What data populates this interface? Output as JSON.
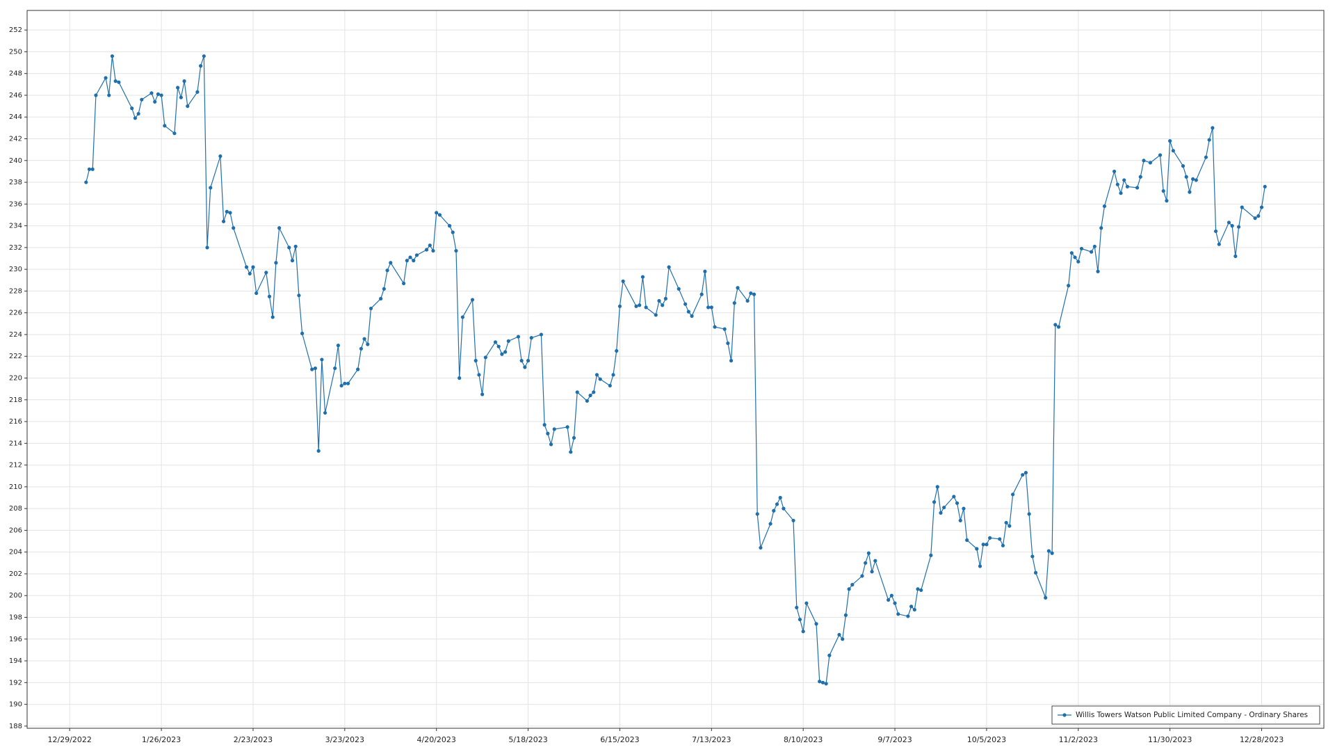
{
  "chart_data": {
    "type": "line",
    "x": [
      "1/3/2023",
      "1/4/2023",
      "1/5/2023",
      "1/6/2023",
      "1/9/2023",
      "1/10/2023",
      "1/11/2023",
      "1/12/2023",
      "1/13/2023",
      "1/17/2023",
      "1/18/2023",
      "1/19/2023",
      "1/20/2023",
      "1/23/2023",
      "1/24/2023",
      "1/25/2023",
      "1/26/2023",
      "1/27/2023",
      "1/30/2023",
      "1/31/2023",
      "2/1/2023",
      "2/2/2023",
      "2/3/2023",
      "2/6/2023",
      "2/7/2023",
      "2/8/2023",
      "2/9/2023",
      "2/10/2023",
      "2/13/2023",
      "2/14/2023",
      "2/15/2023",
      "2/16/2023",
      "2/17/2023",
      "2/21/2023",
      "2/22/2023",
      "2/23/2023",
      "2/24/2023",
      "2/27/2023",
      "2/28/2023",
      "3/1/2023",
      "3/2/2023",
      "3/3/2023",
      "3/6/2023",
      "3/7/2023",
      "3/8/2023",
      "3/9/2023",
      "3/10/2023",
      "3/13/2023",
      "3/14/2023",
      "3/15/2023",
      "3/16/2023",
      "3/17/2023",
      "3/20/2023",
      "3/21/2023",
      "3/22/2023",
      "3/23/2023",
      "3/24/2023",
      "3/27/2023",
      "3/28/2023",
      "3/29/2023",
      "3/30/2023",
      "3/31/2023",
      "4/3/2023",
      "4/4/2023",
      "4/5/2023",
      "4/6/2023",
      "4/10/2023",
      "4/11/2023",
      "4/12/2023",
      "4/13/2023",
      "4/14/2023",
      "4/17/2023",
      "4/18/2023",
      "4/19/2023",
      "4/20/2023",
      "4/21/2023",
      "4/24/2023",
      "4/25/2023",
      "4/26/2023",
      "4/27/2023",
      "4/28/2023",
      "5/1/2023",
      "5/2/2023",
      "5/3/2023",
      "5/4/2023",
      "5/5/2023",
      "5/8/2023",
      "5/9/2023",
      "5/10/2023",
      "5/11/2023",
      "5/12/2023",
      "5/15/2023",
      "5/16/2023",
      "5/17/2023",
      "5/18/2023",
      "5/19/2023",
      "5/22/2023",
      "5/23/2023",
      "5/24/2023",
      "5/25/2023",
      "5/26/2023",
      "5/30/2023",
      "5/31/2023",
      "6/1/2023",
      "6/2/2023",
      "6/5/2023",
      "6/6/2023",
      "6/7/2023",
      "6/8/2023",
      "6/9/2023",
      "6/12/2023",
      "6/13/2023",
      "6/14/2023",
      "6/15/2023",
      "6/16/2023",
      "6/20/2023",
      "6/21/2023",
      "6/22/2023",
      "6/23/2023",
      "6/26/2023",
      "6/27/2023",
      "6/28/2023",
      "6/29/2023",
      "6/30/2023",
      "7/3/2023",
      "7/5/2023",
      "7/6/2023",
      "7/7/2023",
      "7/10/2023",
      "7/11/2023",
      "7/12/2023",
      "7/13/2023",
      "7/14/2023",
      "7/17/2023",
      "7/18/2023",
      "7/19/2023",
      "7/20/2023",
      "7/21/2023",
      "7/24/2023",
      "7/25/2023",
      "7/26/2023",
      "7/27/2023",
      "7/28/2023",
      "7/31/2023",
      "8/1/2023",
      "8/2/2023",
      "8/3/2023",
      "8/4/2023",
      "8/7/2023",
      "8/8/2023",
      "8/9/2023",
      "8/10/2023",
      "8/11/2023",
      "8/14/2023",
      "8/15/2023",
      "8/16/2023",
      "8/17/2023",
      "8/18/2023",
      "8/21/2023",
      "8/22/2023",
      "8/23/2023",
      "8/24/2023",
      "8/25/2023",
      "8/28/2023",
      "8/29/2023",
      "8/30/2023",
      "8/31/2023",
      "9/1/2023",
      "9/5/2023",
      "9/6/2023",
      "9/7/2023",
      "9/8/2023",
      "9/11/2023",
      "9/12/2023",
      "9/13/2023",
      "9/14/2023",
      "9/15/2023",
      "9/18/2023",
      "9/19/2023",
      "9/20/2023",
      "9/21/2023",
      "9/22/2023",
      "9/25/2023",
      "9/26/2023",
      "9/27/2023",
      "9/28/2023",
      "9/29/2023",
      "10/2/2023",
      "10/3/2023",
      "10/4/2023",
      "10/5/2023",
      "10/6/2023",
      "10/9/2023",
      "10/10/2023",
      "10/11/2023",
      "10/12/2023",
      "10/13/2023",
      "10/16/2023",
      "10/17/2023",
      "10/18/2023",
      "10/19/2023",
      "10/20/2023",
      "10/23/2023",
      "10/24/2023",
      "10/25/2023",
      "10/26/2023",
      "10/27/2023",
      "10/30/2023",
      "10/31/2023",
      "11/1/2023",
      "11/2/2023",
      "11/3/2023",
      "11/6/2023",
      "11/7/2023",
      "11/8/2023",
      "11/9/2023",
      "11/10/2023",
      "11/13/2023",
      "11/14/2023",
      "11/15/2023",
      "11/16/2023",
      "11/17/2023",
      "11/20/2023",
      "11/21/2023",
      "11/22/2023",
      "11/24/2023",
      "11/27/2023",
      "11/28/2023",
      "11/29/2023",
      "11/30/2023",
      "12/1/2023",
      "12/4/2023",
      "12/5/2023",
      "12/6/2023",
      "12/7/2023",
      "12/8/2023",
      "12/11/2023",
      "12/12/2023",
      "12/13/2023",
      "12/14/2023",
      "12/15/2023",
      "12/18/2023",
      "12/19/2023",
      "12/20/2023",
      "12/21/2023",
      "12/22/2023",
      "12/26/2023",
      "12/27/2023",
      "12/28/2023",
      "12/29/2023"
    ],
    "series": [
      {
        "name": "Willis Towers Watson Public Limited Company - Ordinary Shares",
        "color": "#1f6fad",
        "values": [
          238.0,
          239.2,
          239.2,
          246.0,
          247.6,
          246.0,
          249.6,
          247.3,
          247.2,
          244.8,
          243.9,
          244.3,
          245.6,
          246.2,
          245.4,
          246.1,
          246.0,
          243.2,
          242.5,
          246.7,
          245.8,
          247.3,
          245.0,
          246.3,
          248.7,
          249.6,
          232.0,
          237.5,
          240.4,
          234.4,
          235.3,
          235.2,
          233.8,
          230.2,
          229.6,
          230.2,
          227.8,
          229.7,
          227.5,
          225.6,
          230.6,
          233.8,
          232.0,
          230.8,
          232.1,
          227.6,
          224.1,
          220.8,
          220.9,
          213.3,
          221.7,
          216.8,
          220.9,
          223.0,
          219.3,
          219.5,
          219.5,
          220.8,
          222.7,
          223.6,
          223.1,
          226.4,
          227.3,
          228.2,
          229.9,
          230.6,
          228.7,
          230.8,
          231.1,
          230.8,
          231.3,
          231.8,
          232.2,
          231.7,
          235.2,
          235.0,
          234.0,
          233.4,
          231.7,
          220.0,
          225.6,
          227.2,
          221.6,
          220.3,
          218.5,
          221.9,
          223.3,
          222.9,
          222.2,
          222.4,
          223.4,
          223.8,
          221.6,
          221.0,
          221.6,
          223.7,
          224.0,
          215.7,
          214.9,
          213.9,
          215.3,
          215.5,
          213.2,
          214.5,
          218.7,
          217.9,
          218.4,
          218.7,
          220.3,
          219.9,
          219.3,
          220.3,
          222.5,
          226.6,
          228.9,
          226.6,
          226.7,
          229.3,
          226.5,
          225.8,
          227.1,
          226.7,
          227.3,
          230.2,
          228.2,
          226.8,
          226.1,
          225.7,
          227.7,
          229.8,
          226.5,
          226.5,
          224.7,
          224.5,
          223.2,
          221.6,
          226.9,
          228.3,
          227.1,
          227.8,
          227.7,
          207.5,
          204.4,
          206.6,
          207.8,
          208.4,
          209.0,
          208.0,
          206.9,
          198.9,
          197.8,
          196.7,
          199.3,
          197.4,
          192.1,
          192.0,
          191.9,
          194.5,
          196.4,
          196.0,
          198.2,
          200.6,
          201.0,
          201.8,
          203.0,
          203.9,
          202.2,
          203.2,
          199.6,
          200.0,
          199.3,
          198.3,
          198.1,
          199.0,
          198.7,
          200.6,
          200.5,
          203.7,
          208.6,
          210.0,
          207.6,
          208.1,
          209.1,
          208.5,
          206.9,
          208.0,
          205.1,
          204.3,
          202.7,
          204.7,
          204.7,
          205.3,
          205.2,
          204.6,
          206.7,
          206.4,
          209.3,
          211.1,
          211.3,
          207.5,
          203.6,
          202.1,
          199.8,
          204.1,
          203.9,
          224.9,
          224.7,
          228.5,
          231.5,
          231.1,
          230.7,
          231.9,
          231.6,
          232.1,
          229.8,
          233.8,
          235.8,
          239.0,
          237.8,
          237.0,
          238.2,
          237.6,
          237.5,
          238.5,
          240.0,
          239.8,
          240.5,
          237.2,
          236.3,
          241.8,
          240.9,
          239.5,
          238.5,
          237.1,
          238.3,
          238.2,
          240.3,
          241.9,
          243.0,
          233.5,
          232.3,
          234.3,
          234.0,
          231.2,
          233.9,
          235.7,
          234.7,
          234.9,
          235.7,
          237.6
        ]
      }
    ],
    "xlim": [
      "12/16/2022",
      "1/16/2024"
    ],
    "xticks": [
      "12/29/2022",
      "1/26/2023",
      "2/23/2023",
      "3/23/2023",
      "4/20/2023",
      "5/18/2023",
      "6/15/2023",
      "7/13/2023",
      "8/10/2023",
      "9/7/2023",
      "10/5/2023",
      "11/2/2023",
      "11/30/2023",
      "12/28/2023"
    ],
    "ylim": [
      187.8,
      253.8
    ],
    "yticks": [
      188,
      190,
      192,
      194,
      196,
      198,
      200,
      202,
      204,
      206,
      208,
      210,
      212,
      214,
      216,
      218,
      220,
      222,
      224,
      226,
      228,
      230,
      232,
      234,
      236,
      238,
      240,
      242,
      244,
      246,
      248,
      250,
      252
    ],
    "grid": true,
    "legend": "lower right"
  }
}
